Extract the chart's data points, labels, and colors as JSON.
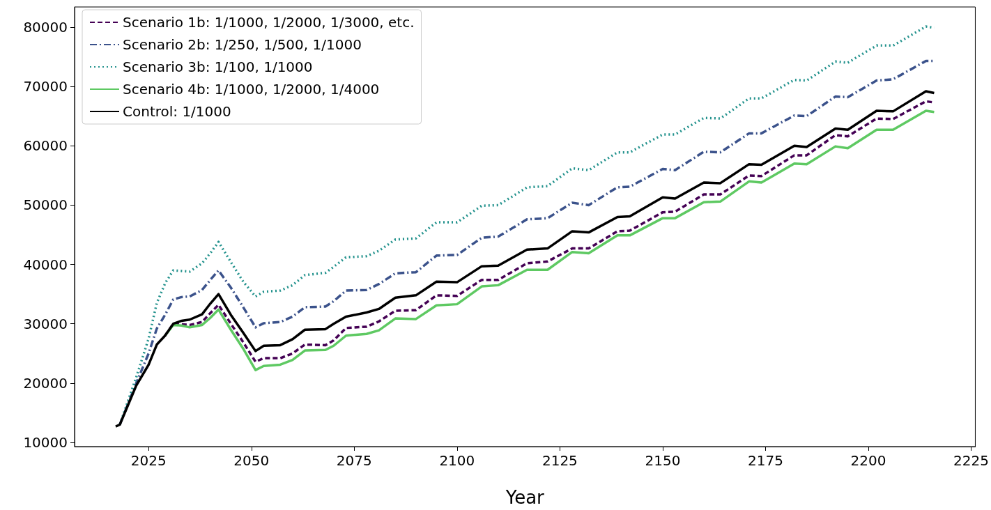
{
  "chart_data": {
    "type": "line",
    "xlabel": "Year",
    "x": [
      2017,
      2018,
      2022,
      2025,
      2027,
      2029,
      2031,
      2033,
      2035,
      2038,
      2040,
      2042,
      2045,
      2048,
      2051,
      2053,
      2057,
      2060,
      2063,
      2068,
      2070,
      2073,
      2078,
      2081,
      2085,
      2090,
      2095,
      2100,
      2106,
      2110,
      2117,
      2122,
      2128,
      2132,
      2139,
      2142,
      2150,
      2153,
      2160,
      2164,
      2171,
      2174,
      2182,
      2185,
      2192,
      2195,
      2202,
      2206,
      2214,
      2216
    ],
    "series": [
      {
        "name": "Scenario 1b: 1/1000, 1/2000, 1/3000, etc.",
        "color": "#440154",
        "line_style": "dashed",
        "values": [
          null,
          null,
          null,
          null,
          null,
          28000,
          30000,
          29900,
          29800,
          30300,
          31800,
          33200,
          30000,
          26900,
          23600,
          24200,
          24200,
          25000,
          26500,
          26400,
          27200,
          29300,
          29500,
          30400,
          32200,
          32300,
          34800,
          34700,
          37400,
          37400,
          40200,
          40500,
          42700,
          42700,
          45600,
          45700,
          48800,
          48900,
          51800,
          51800,
          55000,
          54900,
          58400,
          58400,
          61800,
          61600,
          64600,
          64500,
          67500,
          67300
        ]
      },
      {
        "name": "Scenario 2b: 1/250, 1/500, 1/1000",
        "color": "#3b528b",
        "line_style": "dashdot",
        "values": [
          null,
          13000,
          20000,
          25000,
          29200,
          31500,
          34100,
          34500,
          34600,
          35700,
          37400,
          39000,
          36100,
          32800,
          29400,
          30100,
          30300,
          31200,
          32800,
          32900,
          33800,
          35600,
          35700,
          36700,
          38500,
          38700,
          41500,
          41600,
          44500,
          44700,
          47600,
          47800,
          50400,
          50000,
          53000,
          53100,
          56100,
          55900,
          59000,
          58900,
          62100,
          62100,
          65100,
          65000,
          68300,
          68200,
          71000,
          71200,
          74300,
          74300
        ]
      },
      {
        "name": "Scenario 3b: 1/100, 1/1000",
        "color": "#21918c",
        "line_style": "dotted",
        "values": [
          null,
          13000,
          21000,
          27500,
          33500,
          36800,
          39000,
          38900,
          38800,
          40200,
          41900,
          43800,
          40400,
          37100,
          34600,
          35400,
          35600,
          36500,
          38200,
          38600,
          39600,
          41200,
          41400,
          42300,
          44200,
          44400,
          47100,
          47100,
          49900,
          50000,
          53000,
          53200,
          56200,
          55900,
          58900,
          58900,
          61900,
          61900,
          64700,
          64600,
          68000,
          68000,
          71100,
          71000,
          74200,
          74000,
          76900,
          76900,
          80100,
          79900
        ]
      },
      {
        "name": "Scenario 4b: 1/1000, 1/2000, 1/4000",
        "color": "#5ec962",
        "line_style": "solid",
        "values": [
          null,
          null,
          null,
          null,
          null,
          28000,
          29800,
          29700,
          29400,
          29800,
          31000,
          32400,
          29000,
          25800,
          22200,
          22900,
          23100,
          23900,
          25500,
          25600,
          26300,
          28000,
          28300,
          28900,
          30900,
          30800,
          33100,
          33300,
          36300,
          36500,
          39100,
          39100,
          42100,
          41900,
          44900,
          44900,
          47800,
          47800,
          50500,
          50600,
          54000,
          53800,
          57000,
          56900,
          59900,
          59600,
          62700,
          62700,
          65900,
          65700
        ]
      },
      {
        "name": "Control: 1/1000",
        "color": "#000000",
        "line_style": "solid",
        "values": [
          12700,
          13000,
          19600,
          23100,
          26500,
          28000,
          30000,
          30500,
          30700,
          31600,
          33400,
          35000,
          31500,
          28500,
          25400,
          26300,
          26400,
          27400,
          29000,
          29100,
          30000,
          31200,
          31900,
          32500,
          34400,
          34800,
          37100,
          37000,
          39700,
          39800,
          42500,
          42700,
          45600,
          45400,
          48000,
          48100,
          51300,
          51100,
          53800,
          53700,
          56900,
          56800,
          60000,
          59800,
          62900,
          62700,
          65900,
          65800,
          69200,
          68900
        ]
      }
    ],
    "xlim": [
      2007,
      2226
    ],
    "xticks": [
      2025,
      2050,
      2075,
      2100,
      2125,
      2150,
      2175,
      2200,
      2225
    ],
    "ylim": [
      9300,
      83400
    ],
    "yticks": [
      10000,
      20000,
      30000,
      40000,
      50000,
      60000,
      70000,
      80000
    ],
    "grid": false,
    "legend": "top left",
    "marker": "none"
  }
}
